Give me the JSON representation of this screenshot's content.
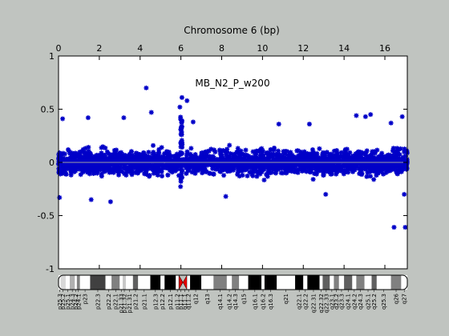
{
  "chart_data": {
    "type": "scatter",
    "title": "Chromosome 6 (bp)",
    "annotation": "MB_N2_P_w200",
    "xlim": [
      0,
      17.1
    ],
    "ylim": [
      -1,
      1
    ],
    "x_ticks": [
      "0",
      "2",
      "4",
      "6",
      "8",
      "10",
      "12",
      "14",
      "16"
    ],
    "y_ticks": [
      "1",
      "0.5",
      "0",
      "-0.5",
      "-1"
    ],
    "grid": false,
    "colors": {
      "points": "#0000c8",
      "zero_line": "#a0a0a0",
      "background": "#c0c4c0",
      "plot_area": "#ffffff",
      "centromere": "#e00000"
    },
    "series": [
      {
        "marker": "asterisk",
        "bulk": {
          "x_range": [
            0,
            17.1
          ],
          "y_range": [
            -0.28,
            0.3
          ]
        },
        "gap": {
          "x_range": [
            5.9,
            6.25
          ],
          "value": 0
        },
        "outliers": [
          [
            4.3,
            0.7
          ],
          [
            6.05,
            0.61
          ],
          [
            6.3,
            0.58
          ],
          [
            5.95,
            0.52
          ],
          [
            4.55,
            0.47
          ],
          [
            15.3,
            0.45
          ],
          [
            14.6,
            0.44
          ],
          [
            15.05,
            0.43
          ],
          [
            16.85,
            0.43
          ],
          [
            0.2,
            0.41
          ],
          [
            1.45,
            0.42
          ],
          [
            3.2,
            0.42
          ],
          [
            6.6,
            0.38
          ],
          [
            10.8,
            0.36
          ],
          [
            12.3,
            0.36
          ],
          [
            16.3,
            0.37
          ],
          [
            2.55,
            -0.37
          ],
          [
            1.6,
            -0.35
          ],
          [
            0.05,
            -0.33
          ],
          [
            16.95,
            -0.3
          ],
          [
            16.45,
            -0.61
          ],
          [
            17.0,
            -0.61
          ],
          [
            8.2,
            -0.32
          ],
          [
            13.1,
            -0.3
          ]
        ]
      }
    ]
  },
  "ideogram": {
    "bands": [
      {
        "label": "p25.3",
        "end": 0.1,
        "fill": "#ffffff"
      },
      {
        "label": "p25.2",
        "end": 0.35,
        "fill": "#d8d8d8"
      },
      {
        "label": "p25.1",
        "end": 0.55,
        "fill": "#ffffff"
      },
      {
        "label": "p24.3",
        "end": 0.8,
        "fill": "#b0b0b0"
      },
      {
        "label": "p24.2",
        "end": 0.9,
        "fill": "#ffffff"
      },
      {
        "label": "p24.1",
        "end": 1.05,
        "fill": "#808080"
      },
      {
        "label": "p23",
        "end": 1.55,
        "fill": "#ffffff"
      },
      {
        "label": "p22.3",
        "end": 2.3,
        "fill": "#404040"
      },
      {
        "label": "p22.2",
        "end": 2.6,
        "fill": "#ffffff"
      },
      {
        "label": "p22.1",
        "end": 3.0,
        "fill": "#808080"
      },
      {
        "label": "p21.33",
        "end": 3.15,
        "fill": "#ffffff"
      },
      {
        "label": "p21.32",
        "end": 3.3,
        "fill": "#c8c8c8"
      },
      {
        "label": "p21.31",
        "end": 3.65,
        "fill": "#ffffff"
      },
      {
        "label": "p21.2",
        "end": 3.9,
        "fill": "#606060"
      },
      {
        "label": "p21.1",
        "end": 4.5,
        "fill": "#ffffff"
      },
      {
        "label": "p12.3",
        "end": 5.0,
        "fill": "#000000"
      },
      {
        "label": "p12.2",
        "end": 5.2,
        "fill": "#ffffff"
      },
      {
        "label": "p12.1",
        "end": 5.75,
        "fill": "#000000"
      },
      {
        "label": "p11.2",
        "end": 5.9,
        "fill": "#ffffff"
      },
      {
        "label": "p11.1",
        "end": 6.1,
        "fill": "#e00000",
        "centromere": true
      },
      {
        "label": "q11.1",
        "end": 6.3,
        "fill": "#e00000",
        "centromere": true
      },
      {
        "label": "q11.2",
        "end": 6.45,
        "fill": "#ffffff"
      },
      {
        "label": "q12",
        "end": 7.0,
        "fill": "#000000"
      },
      {
        "label": "q13",
        "end": 7.6,
        "fill": "#ffffff"
      },
      {
        "label": "q14.1",
        "end": 8.25,
        "fill": "#808080"
      },
      {
        "label": "q14.2",
        "end": 8.5,
        "fill": "#ffffff"
      },
      {
        "label": "q14.3",
        "end": 8.85,
        "fill": "#808080"
      },
      {
        "label": "q15",
        "end": 9.3,
        "fill": "#ffffff"
      },
      {
        "label": "q16.1",
        "end": 9.95,
        "fill": "#000000"
      },
      {
        "label": "q16.2",
        "end": 10.1,
        "fill": "#ffffff"
      },
      {
        "label": "q16.3",
        "end": 10.7,
        "fill": "#000000"
      },
      {
        "label": "q21",
        "end": 11.6,
        "fill": "#ffffff"
      },
      {
        "label": "q22.1",
        "end": 12.0,
        "fill": "#000000"
      },
      {
        "label": "q22.2",
        "end": 12.2,
        "fill": "#ffffff"
      },
      {
        "label": "q22.31",
        "end": 12.8,
        "fill": "#000000"
      },
      {
        "label": "q22.32",
        "end": 12.95,
        "fill": "#ffffff"
      },
      {
        "label": "q22.33",
        "end": 13.3,
        "fill": "#606060"
      },
      {
        "label": "q23.1",
        "end": 13.5,
        "fill": "#ffffff"
      },
      {
        "label": "q23.2",
        "end": 13.75,
        "fill": "#808080"
      },
      {
        "label": "q23.3",
        "end": 14.0,
        "fill": "#ffffff"
      },
      {
        "label": "q24.1",
        "end": 14.4,
        "fill": "#606060"
      },
      {
        "label": "q24.2",
        "end": 14.6,
        "fill": "#ffffff"
      },
      {
        "label": "q24.3",
        "end": 15.0,
        "fill": "#808080"
      },
      {
        "label": "q25.1",
        "end": 15.35,
        "fill": "#ffffff"
      },
      {
        "label": "q25.2",
        "end": 15.6,
        "fill": "#606060"
      },
      {
        "label": "q25.3",
        "end": 16.3,
        "fill": "#ffffff"
      },
      {
        "label": "q26",
        "end": 16.8,
        "fill": "#808080"
      },
      {
        "label": "q27",
        "end": 17.1,
        "fill": "#ffffff"
      }
    ]
  }
}
